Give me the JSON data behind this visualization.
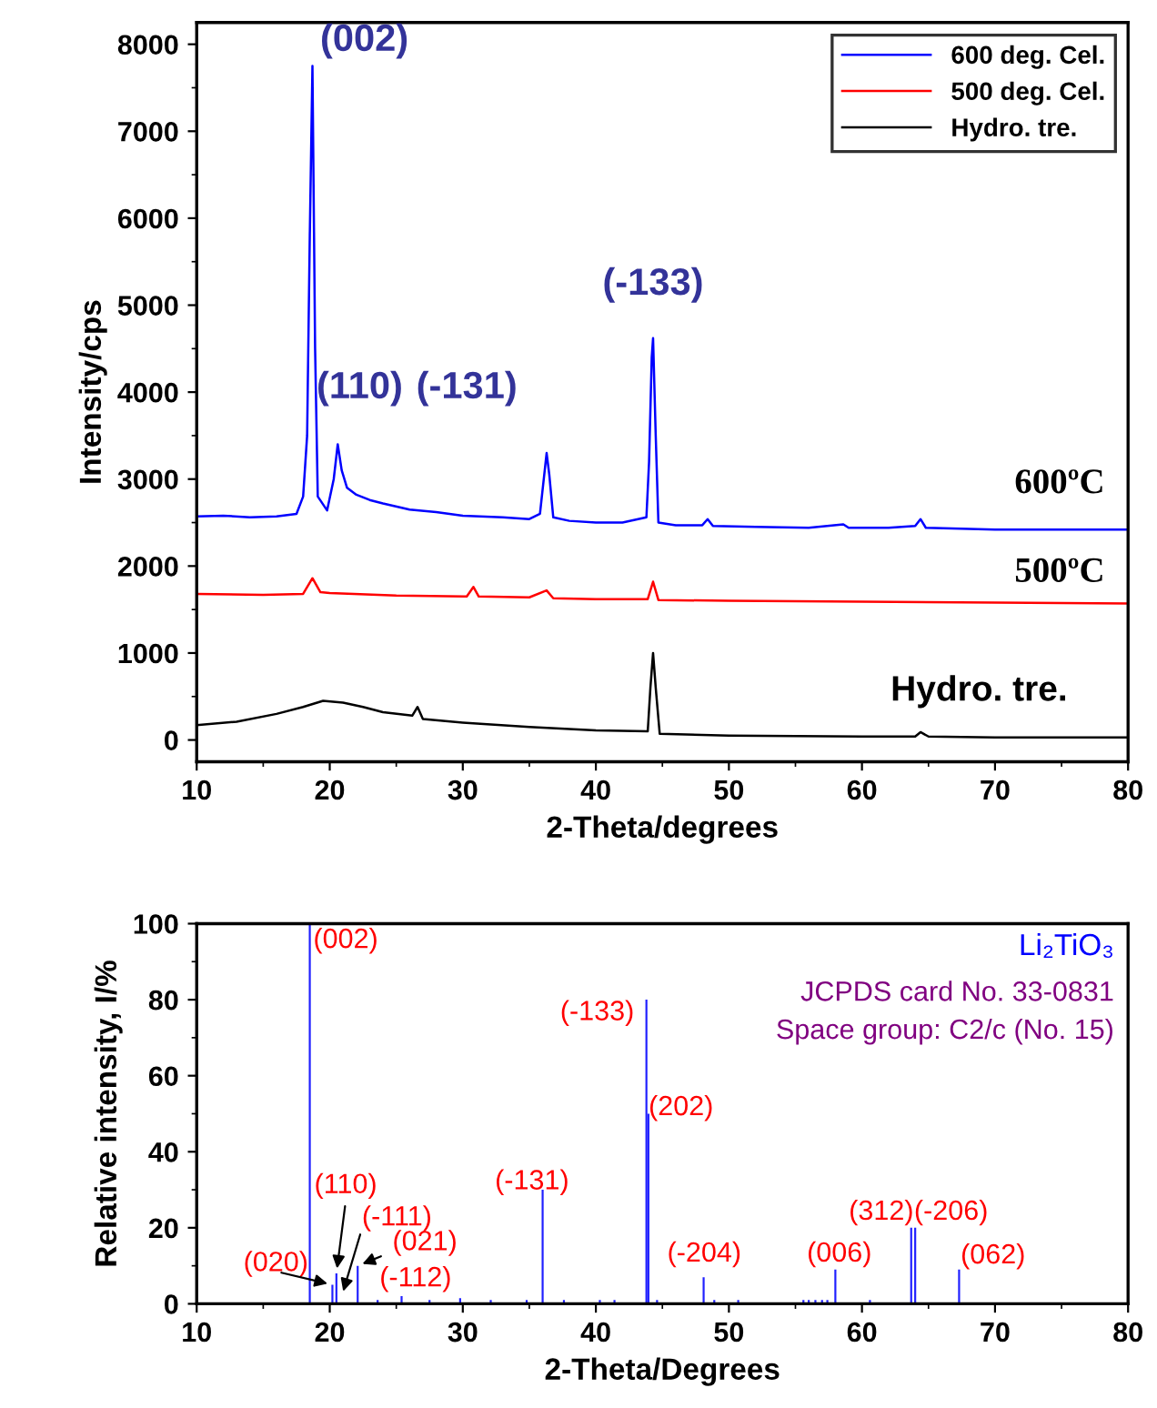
{
  "chart_data": [
    {
      "type": "line",
      "xlabel": "2-Theta/degrees",
      "ylabel": "Intensity/cps",
      "xlim": [
        10,
        80
      ],
      "ylim": [
        -250,
        8250
      ],
      "xticks": [
        10,
        20,
        30,
        40,
        50,
        60,
        70,
        80
      ],
      "yticks": [
        0,
        1000,
        2000,
        3000,
        4000,
        5000,
        6000,
        7000,
        8000
      ],
      "legend": "top right",
      "grid": false,
      "series": [
        {
          "name": "600 deg. Cel.",
          "color": "#0000ff",
          "x": [
            10,
            12,
            14,
            16,
            17.5,
            18.0,
            18.3,
            18.5,
            18.7,
            18.9,
            19.1,
            19.8,
            20.3,
            20.6,
            20.9,
            21.3,
            22,
            23,
            24,
            26,
            28,
            30,
            33,
            35,
            35.8,
            36.3,
            36.5,
            36.8,
            38,
            40,
            42,
            43.8,
            44.0,
            44.2,
            44.3,
            44.5,
            44.7,
            46,
            48.0,
            48.4,
            48.8,
            52,
            56,
            58.6,
            59,
            62,
            64.0,
            64.4,
            64.8,
            70,
            75,
            80
          ],
          "values": [
            2570,
            2580,
            2560,
            2570,
            2600,
            2800,
            3500,
            5800,
            7750,
            4500,
            2800,
            2640,
            3000,
            3400,
            3100,
            2900,
            2820,
            2760,
            2720,
            2650,
            2620,
            2580,
            2560,
            2540,
            2600,
            3300,
            3050,
            2560,
            2520,
            2500,
            2500,
            2560,
            3200,
            4400,
            4620,
            3500,
            2500,
            2470,
            2470,
            2540,
            2460,
            2450,
            2440,
            2480,
            2440,
            2440,
            2460,
            2540,
            2440,
            2420,
            2420,
            2420
          ]
        },
        {
          "name": "500 deg. Cel.",
          "color": "#ff0000",
          "x": [
            10,
            15,
            18,
            18.7,
            19.3,
            20,
            25,
            30.3,
            30.8,
            31.2,
            35,
            36.3,
            36.8,
            40,
            43.9,
            44.3,
            44.7,
            50,
            60,
            70,
            80
          ],
          "values": [
            1680,
            1670,
            1680,
            1860,
            1700,
            1690,
            1660,
            1650,
            1760,
            1650,
            1640,
            1720,
            1630,
            1620,
            1620,
            1820,
            1610,
            1600,
            1590,
            1580,
            1570
          ]
        },
        {
          "name": "Hydro. tre.",
          "color": "#000000",
          "x": [
            10,
            13,
            16,
            18,
            19.5,
            21,
            22.5,
            24,
            26.2,
            26.6,
            27,
            30,
            35,
            40,
            43.9,
            44.1,
            44.3,
            44.5,
            44.8,
            50,
            60,
            64.0,
            64.4,
            65,
            70,
            80
          ],
          "values": [
            170,
            210,
            300,
            380,
            450,
            430,
            380,
            320,
            280,
            380,
            240,
            200,
            150,
            110,
            100,
            600,
            1000,
            600,
            70,
            50,
            40,
            40,
            90,
            40,
            30,
            30
          ]
        }
      ],
      "annotations": [
        "(002)",
        "(110)",
        "(-131)",
        "(-133)",
        "600ºC",
        "500ºC",
        "Hydro. tre."
      ]
    },
    {
      "type": "bar",
      "xlabel": "2-Theta/Degrees",
      "ylabel": "Relative intensity, I/%",
      "xlim": [
        10,
        80
      ],
      "ylim": [
        0,
        100
      ],
      "xticks": [
        10,
        20,
        30,
        40,
        50,
        60,
        70,
        80
      ],
      "yticks": [
        0,
        20,
        40,
        60,
        80,
        100
      ],
      "grid": false,
      "color": "#2020ff",
      "x": [
        18.5,
        20.2,
        20.5,
        22.1,
        23.6,
        25.4,
        27.5,
        29.8,
        32.1,
        34.8,
        36.0,
        37.6,
        40.3,
        41.4,
        43.8,
        43.95,
        44.6,
        48.1,
        48.9,
        50.7,
        55.6,
        56.0,
        56.5,
        57.0,
        57.4,
        58.0,
        60.6,
        63.7,
        64.0,
        67.3
      ],
      "values": [
        100,
        5,
        8,
        10,
        1,
        2,
        1,
        1.5,
        1,
        1,
        30,
        1,
        1,
        1,
        80,
        50,
        1,
        7,
        1,
        1,
        1,
        1,
        1,
        1,
        1,
        9,
        1,
        20,
        20,
        9
      ],
      "annotations": [
        "(002)",
        "(-133)",
        "(202)",
        "(-131)",
        {
          "text": "(110)",
          "x": 20.5,
          "y": 8
        },
        {
          "text": "(-111)",
          "x": 20.9,
          "y": 2
        },
        {
          "text": "(021)",
          "x": 22.1,
          "y": 10
        },
        "(-112)",
        {
          "text": "(020)",
          "x": 20.2,
          "y": 5
        },
        "(-204)",
        "(006)",
        "(312)",
        "(-206)",
        "(062)",
        "Li₂TiO₃",
        "JCPDS card No. 33-0831",
        "Space group: C2/c (No. 15)"
      ]
    }
  ]
}
